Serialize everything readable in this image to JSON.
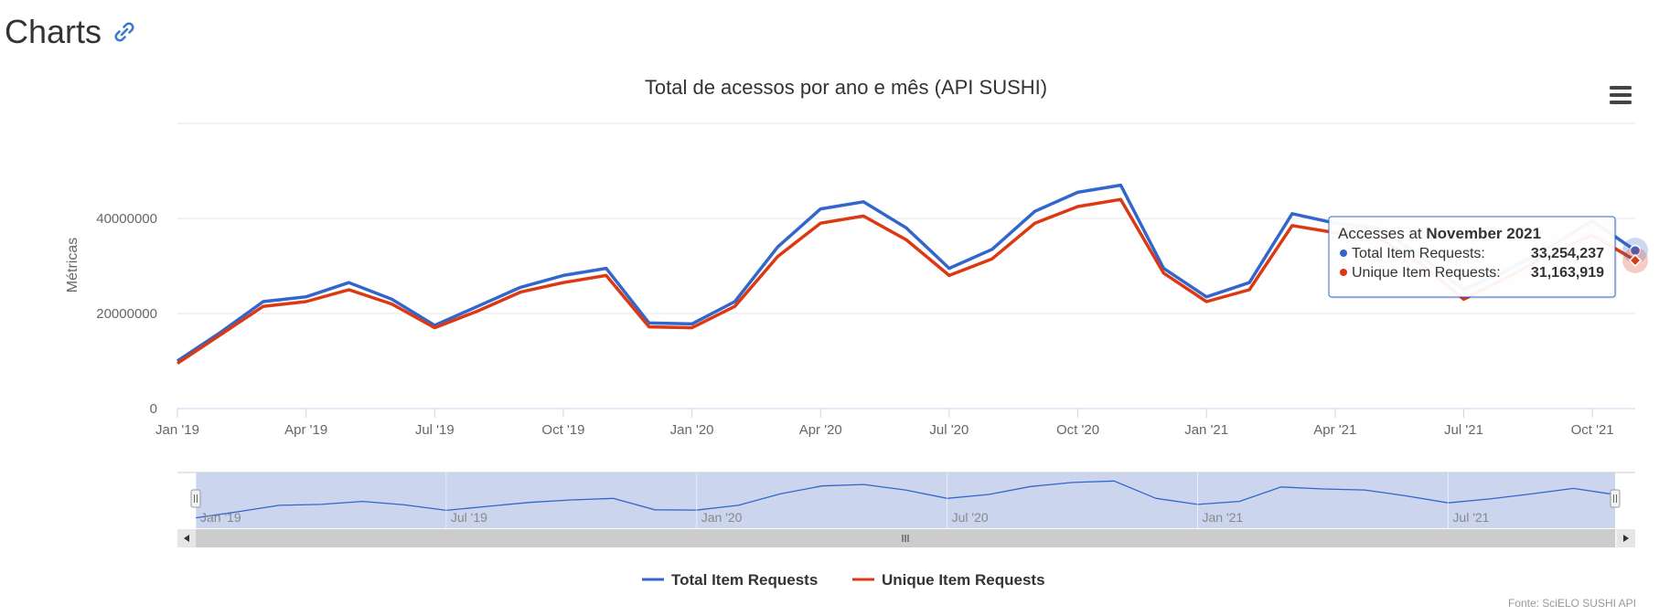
{
  "page": {
    "title": "Charts"
  },
  "chart_data": {
    "type": "line",
    "title": "Total de acessos por ano e mês (API SUSHI)",
    "ylabel": "Métricas",
    "xlabel": "",
    "ylim": [
      0,
      60000000
    ],
    "y_ticks": [
      "0",
      "20000000",
      "40000000"
    ],
    "y_tick_values": [
      0,
      20000000,
      40000000
    ],
    "x_tick_labels": [
      "Jan '19",
      "Apr '19",
      "Jul '19",
      "Oct '19",
      "Jan '20",
      "Apr '20",
      "Jul '20",
      "Oct '20",
      "Jan '21",
      "Apr '21",
      "Jul '21",
      "Oct '21"
    ],
    "x": [
      "2019-01",
      "2019-02",
      "2019-03",
      "2019-04",
      "2019-05",
      "2019-06",
      "2019-07",
      "2019-08",
      "2019-09",
      "2019-10",
      "2019-11",
      "2019-12",
      "2020-01",
      "2020-02",
      "2020-03",
      "2020-04",
      "2020-05",
      "2020-06",
      "2020-07",
      "2020-08",
      "2020-09",
      "2020-10",
      "2020-11",
      "2020-12",
      "2021-01",
      "2021-02",
      "2021-03",
      "2021-04",
      "2021-05",
      "2021-06",
      "2021-07",
      "2021-08",
      "2021-09",
      "2021-10",
      "2021-11"
    ],
    "series": [
      {
        "name": "Total Item Requests",
        "color": "#3366cc",
        "values": [
          10000000,
          16000000,
          22500000,
          23500000,
          26500000,
          23000000,
          17500000,
          21500000,
          25500000,
          28000000,
          29500000,
          18000000,
          17800000,
          22500000,
          34000000,
          42000000,
          43500000,
          38000000,
          29500000,
          33500000,
          41500000,
          45500000,
          47000000,
          29500000,
          23500000,
          26500000,
          41000000,
          39000000,
          38000000,
          32000000,
          25000000,
          29000000,
          34000000,
          39500000,
          33254237
        ]
      },
      {
        "name": "Unique Item Requests",
        "color": "#dc3912",
        "values": [
          9500000,
          15500000,
          21500000,
          22500000,
          25000000,
          22000000,
          17000000,
          20500000,
          24500000,
          26500000,
          28000000,
          17200000,
          17000000,
          21500000,
          32000000,
          39000000,
          40500000,
          35500000,
          28000000,
          31500000,
          39000000,
          42500000,
          44000000,
          28500000,
          22500000,
          25000000,
          38500000,
          37000000,
          36000000,
          30500000,
          23000000,
          27500000,
          32500000,
          36500000,
          31163919
        ]
      }
    ],
    "navigator": {
      "tick_labels": [
        "Jan '19",
        "Jul '19",
        "Jan '20",
        "Jul '20",
        "Jan '21",
        "Jul '21"
      ]
    },
    "tooltip": {
      "prefix": "Accesses at ",
      "period": "November 2021",
      "rows": [
        {
          "label": "Total Item Requests:",
          "value": "33,254,237",
          "color": "#3366cc"
        },
        {
          "label": "Unique Item Requests:",
          "value": "31,163,919",
          "color": "#dc3912"
        }
      ]
    },
    "legend": {
      "position": "bottom-center",
      "items": [
        "Total Item Requests",
        "Unique Item Requests"
      ]
    },
    "credits": "Fonte: SciELO SUSHI API",
    "grid": true
  }
}
